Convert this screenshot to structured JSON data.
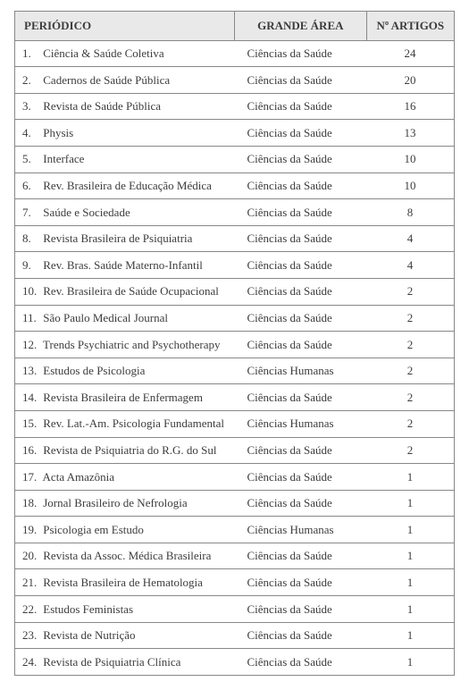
{
  "table": {
    "headers": {
      "periodico": "PERIÓDICO",
      "area": "GRANDE ÁREA",
      "artigos": "Nº ARTIGOS"
    },
    "rows": [
      {
        "num": "1.",
        "periodico": "Ciência & Saúde Coletiva",
        "area": "Ciências da Saúde",
        "artigos": "24"
      },
      {
        "num": "2.",
        "periodico": "Cadernos de Saúde Pública",
        "area": "Ciências da Saúde",
        "artigos": "20"
      },
      {
        "num": "3.",
        "periodico": "Revista de Saúde Pública",
        "area": "Ciências da Saúde",
        "artigos": "16"
      },
      {
        "num": "4.",
        "periodico": "Physis",
        "area": "Ciências da Saúde",
        "artigos": "13"
      },
      {
        "num": "5.",
        "periodico": "Interface",
        "area": "Ciências da Saúde",
        "artigos": "10"
      },
      {
        "num": "6.",
        "periodico": "Rev. Brasileira de Educação Médica",
        "area": "Ciências da Saúde",
        "artigos": "10"
      },
      {
        "num": "7.",
        "periodico": "Saúde e Sociedade",
        "area": "Ciências da Saúde",
        "artigos": "8"
      },
      {
        "num": "8.",
        "periodico": "Revista Brasileira de Psiquiatria",
        "area": "Ciências da Saúde",
        "artigos": "4"
      },
      {
        "num": "9.",
        "periodico": "Rev. Bras. Saúde Materno-Infantil",
        "area": "Ciências da Saúde",
        "artigos": "4"
      },
      {
        "num": "10.",
        "periodico": "Rev. Brasileira de Saúde Ocupacional",
        "area": "Ciências da Saúde",
        "artigos": "2"
      },
      {
        "num": "11.",
        "periodico": "São Paulo Medical Journal",
        "area": "Ciências da Saúde",
        "artigos": "2"
      },
      {
        "num": "12.",
        "periodico": "Trends Psychiatric and Psychotherapy",
        "area": "Ciências da Saúde",
        "artigos": "2"
      },
      {
        "num": "13.",
        "periodico": "Estudos de Psicologia",
        "area": "Ciências Humanas",
        "artigos": "2"
      },
      {
        "num": "14.",
        "periodico": "Revista Brasileira de Enfermagem",
        "area": "Ciências da Saúde",
        "artigos": "2"
      },
      {
        "num": "15.",
        "periodico": "Rev. Lat.-Am. Psicologia Fundamental",
        "area": "Ciências Humanas",
        "artigos": "2"
      },
      {
        "num": "16.",
        "periodico": "Revista de Psiquiatria do R.G. do Sul",
        "area": "Ciências da Saúde",
        "artigos": "2"
      },
      {
        "num": "17.",
        "periodico": "Acta Amazônia",
        "area": "Ciências da Saúde",
        "artigos": "1"
      },
      {
        "num": "18.",
        "periodico": "Jornal Brasileiro de Nefrologia",
        "area": "Ciências da Saúde",
        "artigos": "1"
      },
      {
        "num": "19.",
        "periodico": "Psicologia em Estudo",
        "area": "Ciências Humanas",
        "artigos": "1"
      },
      {
        "num": "20.",
        "periodico": "Revista da Assoc. Médica Brasileira",
        "area": "Ciências da Saúde",
        "artigos": "1"
      },
      {
        "num": "21.",
        "periodico": "Revista Brasileira de Hematologia",
        "area": "Ciências da Saúde",
        "artigos": "1"
      },
      {
        "num": "22.",
        "periodico": "Estudos Feministas",
        "area": "Ciências da Saúde",
        "artigos": "1"
      },
      {
        "num": "23.",
        "periodico": "Revista de Nutrição",
        "area": "Ciências da Saúde",
        "artigos": "1"
      },
      {
        "num": "24.",
        "periodico": "Revista de Psiquiatria Clínica",
        "area": "Ciências da Saúde",
        "artigos": "1"
      }
    ],
    "colors": {
      "header_bg": "#e9e9e9",
      "border": "#888888",
      "text": "#3d3d3d",
      "page_bg": "#ffffff"
    },
    "font_size_pt": 10
  }
}
